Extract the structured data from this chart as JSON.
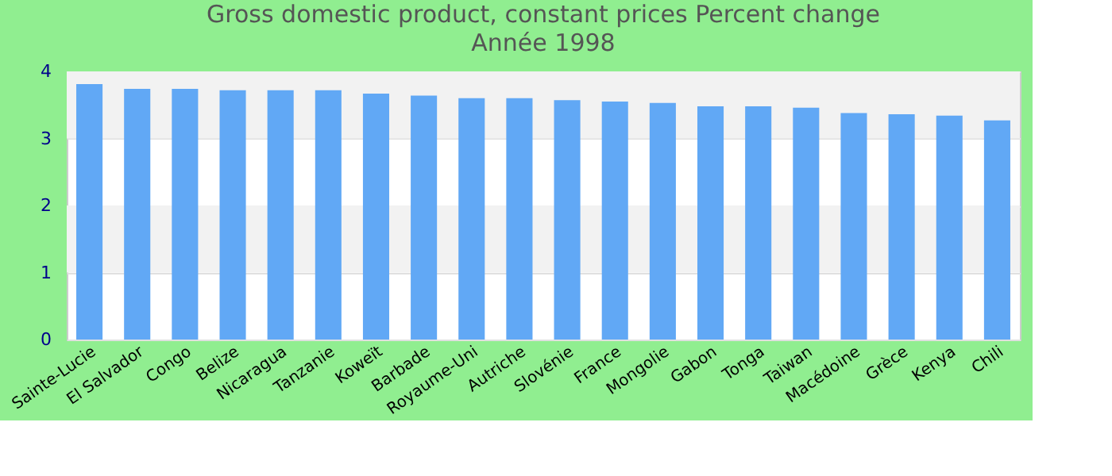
{
  "chart_data": {
    "type": "bar",
    "title": "Gross domestic product, constant prices  Percent change",
    "subtitle": "Année 1998",
    "categories": [
      "Sainte-Lucie",
      "El Salvador",
      "Congo",
      "Belize",
      "Nicaragua",
      "Tanzanie",
      "Koweït",
      "Barbade",
      "Royaume-Uni",
      "Autriche",
      "Slovénie",
      "France",
      "Mongolie",
      "Gabon",
      "Tonga",
      "Taiwan",
      "Macédoine",
      "Grèce",
      "Kenya",
      "Chili"
    ],
    "values": [
      3.81,
      3.74,
      3.74,
      3.72,
      3.72,
      3.72,
      3.67,
      3.64,
      3.6,
      3.6,
      3.57,
      3.55,
      3.53,
      3.48,
      3.48,
      3.46,
      3.38,
      3.36,
      3.34,
      3.27
    ],
    "color": "#61a8f5",
    "ylim": [
      0,
      4
    ],
    "yticks": [
      0,
      1,
      2,
      3,
      4
    ],
    "grid": "y"
  }
}
